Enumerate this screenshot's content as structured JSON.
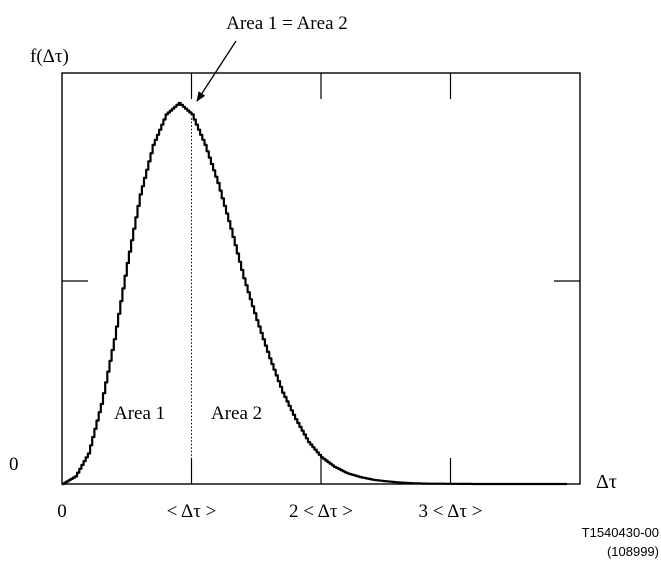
{
  "chart_data": {
    "type": "line",
    "title": "",
    "ylabel": "f(Δτ)",
    "xlabel": "Δτ",
    "y_origin_label": "0",
    "x_tick_labels": [
      "0",
      "< Δτ >",
      "2 < Δτ >",
      "3 < Δτ >"
    ],
    "x_ticks": [
      0,
      1,
      2,
      3
    ],
    "xlim": [
      0,
      3.9
    ],
    "ylim": [
      0,
      1.0
    ],
    "series": [
      {
        "name": "",
        "x": [
          0,
          0.1,
          0.2,
          0.3,
          0.4,
          0.5,
          0.6,
          0.7,
          0.8,
          0.9,
          1.0,
          1.1,
          1.2,
          1.3,
          1.4,
          1.5,
          1.6,
          1.7,
          1.8,
          1.9,
          2.0,
          2.1,
          2.2,
          2.3,
          2.4,
          2.5,
          2.6,
          2.7,
          2.8,
          3.0,
          3.2,
          3.5,
          3.9
        ],
        "y": [
          0,
          0.02,
          0.08,
          0.21,
          0.38,
          0.58,
          0.76,
          0.89,
          0.97,
          1.0,
          0.97,
          0.89,
          0.79,
          0.67,
          0.54,
          0.43,
          0.33,
          0.24,
          0.17,
          0.11,
          0.07,
          0.045,
          0.028,
          0.018,
          0.011,
          0.007,
          0.004,
          0.002,
          0.001,
          0.0005,
          0,
          0,
          0
        ]
      }
    ],
    "mean_line_x": 1,
    "region_labels": [
      "Area 1",
      "Area 2"
    ],
    "annotation": "Area 1 = Area 2",
    "grid": false,
    "frame_ticks": [
      1,
      2,
      3
    ]
  },
  "figure_id": "T1540430-00",
  "figure_number": "(108999)"
}
